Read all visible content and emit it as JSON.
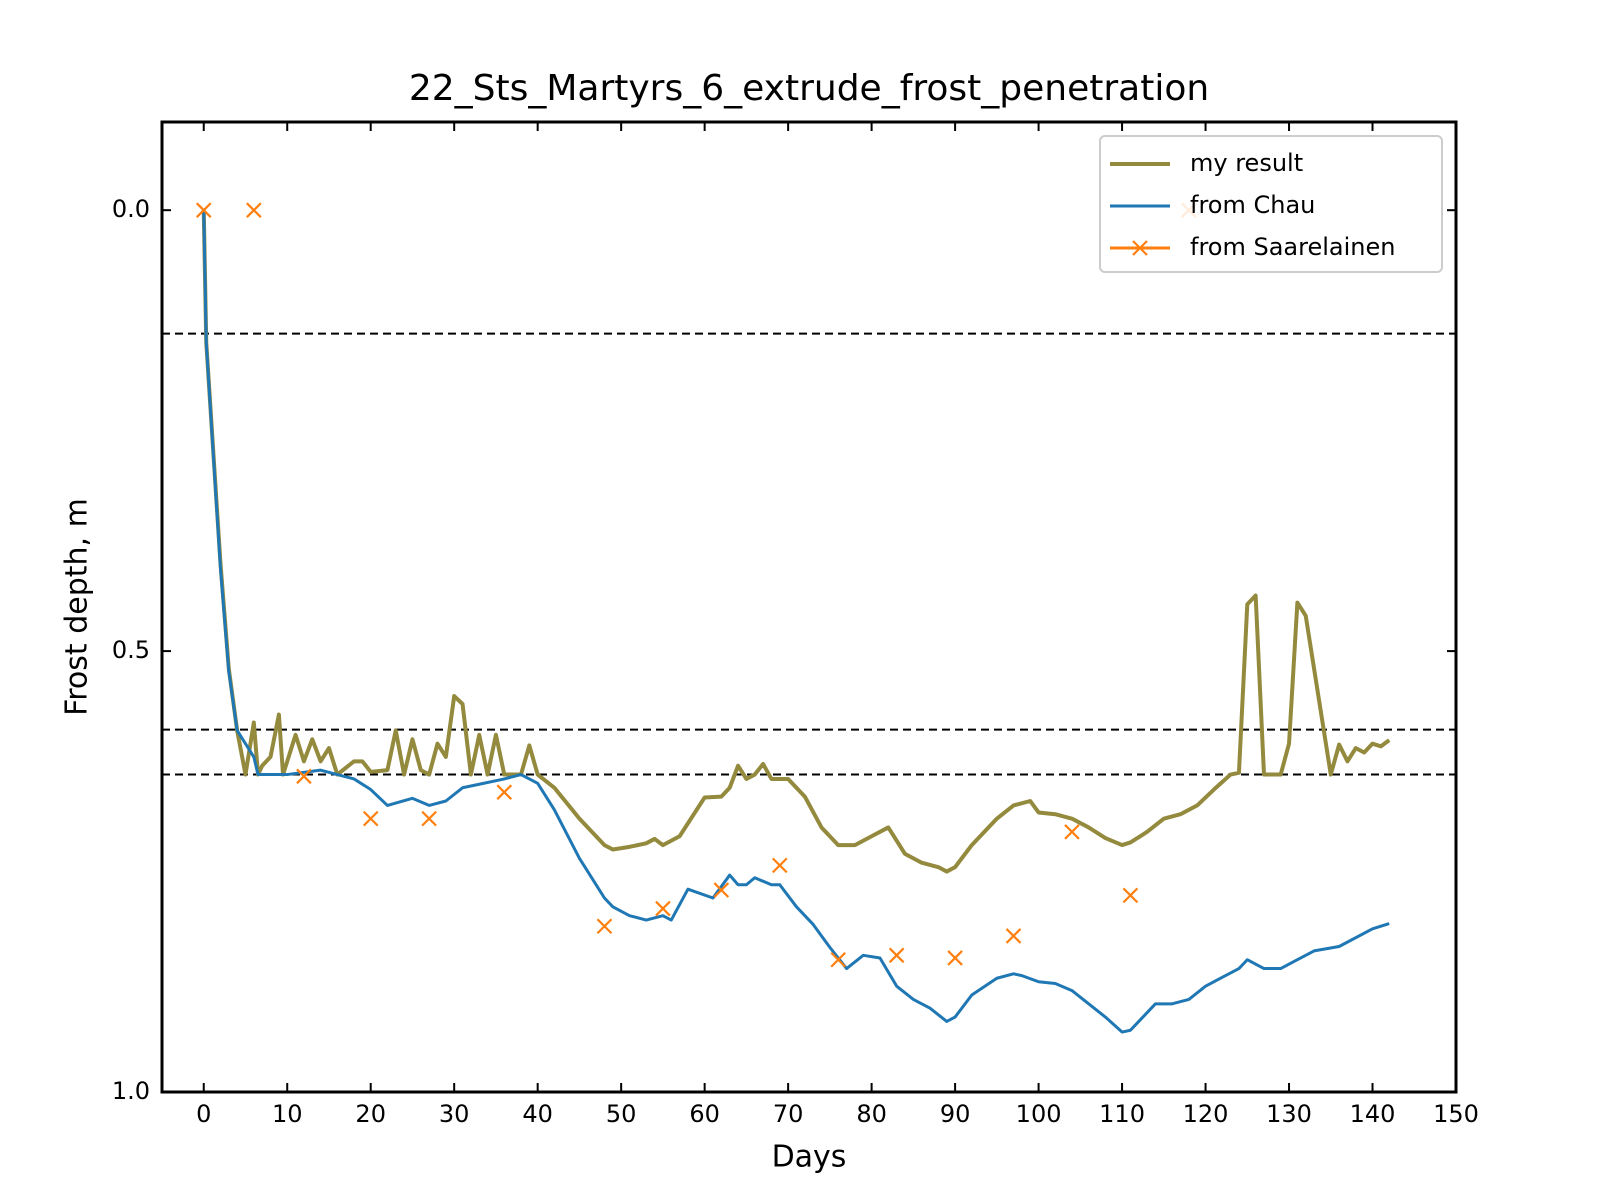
{
  "chart_data": {
    "type": "line",
    "title": "22_Sts_Martyrs_6_extrude_frost_penetration",
    "x_label": "Days",
    "y_label": "Frost depth, m",
    "xlim": [
      -5,
      150
    ],
    "xticks": [
      0,
      10,
      20,
      30,
      40,
      50,
      60,
      70,
      80,
      90,
      100,
      110,
      120,
      130,
      140,
      150
    ],
    "ylim": [
      1.0,
      -0.1
    ],
    "yticks": [
      {
        "value": 0,
        "label": "0.0"
      },
      {
        "value": 0.5,
        "label": "0.5"
      },
      {
        "value": 1,
        "label": "1.0"
      }
    ],
    "y_inverted": true,
    "legend": "upper right",
    "hlines": [
      0.14,
      0.589,
      0.64
    ],
    "series": [
      {
        "name": "my result",
        "color": "#948a3e",
        "marker": null,
        "x": [
          0,
          0.3,
          2,
          3,
          4,
          5,
          6,
          6.5,
          7,
          8,
          9,
          9.5,
          11,
          12,
          13,
          14,
          15,
          16,
          18,
          19,
          20,
          22,
          23,
          24,
          25,
          26,
          27,
          28,
          29,
          30,
          31,
          32,
          33,
          34,
          35,
          36,
          38,
          39,
          40,
          42,
          45,
          48,
          49,
          51,
          53,
          54,
          55,
          57,
          60,
          62,
          63,
          64,
          65,
          66,
          67,
          68,
          70,
          72,
          74,
          76,
          78,
          80,
          82,
          84,
          86,
          88,
          89,
          90,
          92,
          95,
          97,
          99,
          100,
          102,
          104,
          106,
          108,
          110,
          111,
          113,
          115,
          117,
          119,
          121,
          123,
          124,
          125,
          126,
          127,
          129,
          130,
          131,
          132,
          134,
          135,
          136,
          137,
          138,
          139,
          140,
          141,
          142
        ],
        "values": [
          0,
          0.15,
          0.4,
          0.52,
          0.59,
          0.64,
          0.581,
          0.64,
          0.63,
          0.62,
          0.572,
          0.64,
          0.595,
          0.625,
          0.6,
          0.625,
          0.61,
          0.64,
          0.625,
          0.625,
          0.637,
          0.635,
          0.59,
          0.64,
          0.6,
          0.635,
          0.64,
          0.605,
          0.62,
          0.551,
          0.56,
          0.64,
          0.595,
          0.64,
          0.595,
          0.64,
          0.64,
          0.607,
          0.64,
          0.655,
          0.69,
          0.72,
          0.725,
          0.722,
          0.718,
          0.713,
          0.72,
          0.71,
          0.666,
          0.665,
          0.655,
          0.63,
          0.645,
          0.64,
          0.628,
          0.645,
          0.645,
          0.665,
          0.7,
          0.72,
          0.72,
          0.71,
          0.7,
          0.73,
          0.74,
          0.745,
          0.75,
          0.745,
          0.72,
          0.69,
          0.675,
          0.67,
          0.683,
          0.685,
          0.69,
          0.7,
          0.712,
          0.72,
          0.717,
          0.705,
          0.69,
          0.685,
          0.675,
          0.657,
          0.64,
          0.638,
          0.447,
          0.437,
          0.64,
          0.64,
          0.605,
          0.445,
          0.46,
          0.58,
          0.64,
          0.606,
          0.625,
          0.61,
          0.615,
          0.605,
          0.608,
          0.601
        ]
      },
      {
        "name": "from Chau",
        "color": "#1f77b4",
        "marker": null,
        "x": [
          0,
          0.3,
          2,
          3,
          4,
          6,
          6.5,
          10,
          14,
          18,
          20,
          22,
          25,
          27,
          29,
          31,
          33,
          36,
          38,
          40,
          42,
          45,
          48,
          49,
          51,
          53,
          55,
          56,
          58,
          61,
          63,
          64,
          65,
          66,
          68,
          69,
          71,
          73,
          75,
          77,
          79,
          81,
          83,
          85,
          87,
          89,
          90,
          92,
          95,
          97,
          98,
          100,
          102,
          104,
          106,
          108,
          110,
          111,
          112,
          114,
          116,
          118,
          120,
          122,
          124,
          125,
          127,
          129,
          131,
          133,
          136,
          140,
          142
        ],
        "values": [
          0,
          0.15,
          0.406,
          0.523,
          0.59,
          0.62,
          0.64,
          0.64,
          0.635,
          0.645,
          0.657,
          0.675,
          0.667,
          0.675,
          0.67,
          0.655,
          0.651,
          0.645,
          0.64,
          0.65,
          0.68,
          0.735,
          0.78,
          0.79,
          0.8,
          0.805,
          0.8,
          0.805,
          0.77,
          0.78,
          0.754,
          0.765,
          0.765,
          0.757,
          0.765,
          0.765,
          0.79,
          0.81,
          0.836,
          0.86,
          0.845,
          0.848,
          0.88,
          0.895,
          0.905,
          0.92,
          0.915,
          0.89,
          0.871,
          0.866,
          0.868,
          0.875,
          0.877,
          0.885,
          0.9,
          0.915,
          0.932,
          0.93,
          0.92,
          0.9,
          0.9,
          0.895,
          0.88,
          0.87,
          0.86,
          0.85,
          0.86,
          0.86,
          0.85,
          0.84,
          0.835,
          0.815,
          0.809
        ]
      },
      {
        "name": "from Saarelainen",
        "color": "#ff7f0e",
        "marker": "x",
        "x": [
          0,
          6,
          12,
          20,
          27,
          36,
          48,
          55,
          62,
          69,
          76,
          83,
          90,
          97,
          104,
          111,
          118
        ],
        "values": [
          0,
          0,
          0.642,
          0.69,
          0.69,
          0.66,
          0.812,
          0.792,
          0.771,
          0.743,
          0.85,
          0.845,
          0.848,
          0.823,
          0.705,
          0.777,
          0
        ]
      }
    ]
  }
}
